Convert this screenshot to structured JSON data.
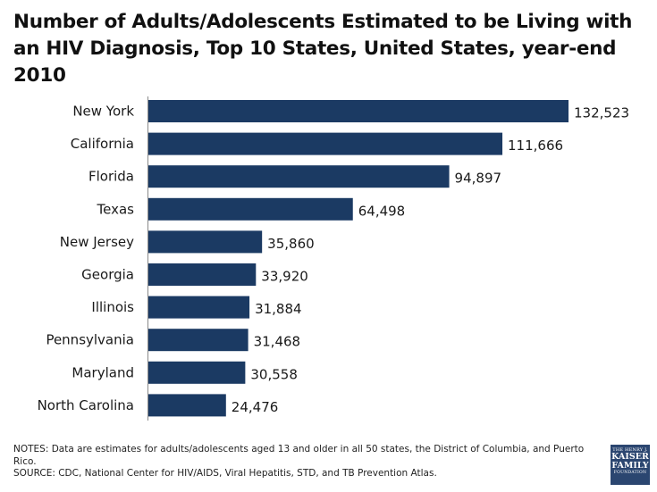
{
  "title": "Number of Adults/Adolescents Estimated to be Living with an HIV Diagnosis, Top 10 States, United States, year-end 2010",
  "chart_data": {
    "type": "bar",
    "orientation": "horizontal",
    "categories": [
      "New York",
      "California",
      "Florida",
      "Texas",
      "New Jersey",
      "Georgia",
      "Illinois",
      "Pennsylvania",
      "Maryland",
      "North Carolina"
    ],
    "values": [
      132523,
      111666,
      94897,
      64498,
      35860,
      33920,
      31884,
      31468,
      30558,
      24476
    ],
    "value_labels": [
      "132,523",
      "111,666",
      "94,897",
      "64,498",
      "35,860",
      "33,920",
      "31,884",
      "31,468",
      "30,558",
      "24,476"
    ],
    "bar_color": "#1b3a63",
    "xlim": [
      0,
      132523
    ],
    "grid": false,
    "legend": "none"
  },
  "notes": {
    "line1": "NOTES: Data are estimates for adults/adolescents aged 13 and older in all 50 states, the District of Columbia, and Puerto Rico.",
    "line2": "SOURCE: CDC, National Center for HIV/AIDS, Viral Hepatitis, STD, and TB Prevention Atlas."
  },
  "logo": {
    "line1": "THE HENRY J.",
    "line2": "KAISER",
    "line3": "FAMILY",
    "line4": "FOUNDATION"
  }
}
